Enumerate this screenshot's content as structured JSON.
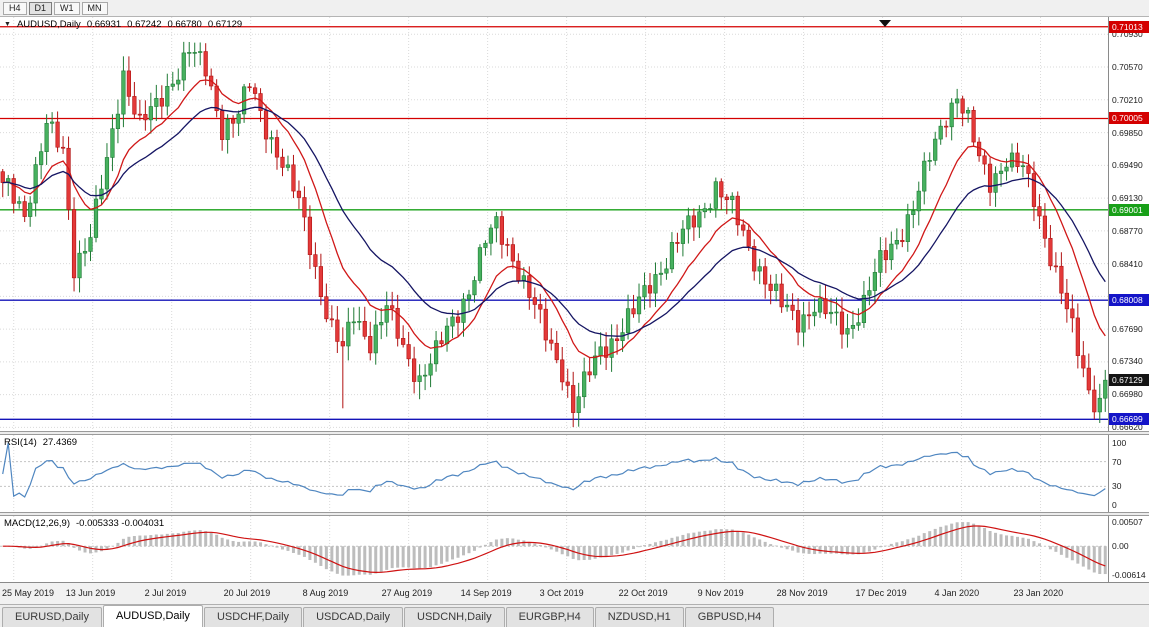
{
  "toolbar": {
    "periods": [
      "H4",
      "D1",
      "W1",
      "MN"
    ],
    "active_period": "D1"
  },
  "chart_header": {
    "symbol": "AUDUSD,Daily",
    "open": "0.66931",
    "high": "0.67242",
    "low": "0.66780",
    "close": "0.67129"
  },
  "price_axis": {
    "ticks": [
      "0.70930",
      "0.70570",
      "0.70210",
      "0.69850",
      "0.69490",
      "0.69130",
      "0.68770",
      "0.68410",
      "0.67690",
      "0.67340",
      "0.66980",
      "0.66620"
    ],
    "badges": [
      {
        "value": "0.71013",
        "price": 0.71013,
        "color": "#d40000"
      },
      {
        "value": "0.70005",
        "price": 0.70005,
        "color": "#d40000"
      },
      {
        "value": "0.69001",
        "price": 0.69001,
        "color": "#18a018"
      },
      {
        "value": "0.68008",
        "price": 0.68008,
        "color": "#1414c8"
      },
      {
        "value": "0.67129",
        "price": 0.67129,
        "color": "#141414"
      },
      {
        "value": "0.66699",
        "price": 0.66699,
        "color": "#1414c8"
      }
    ]
  },
  "hlines": [
    {
      "price": 0.71013,
      "color": "#d40000"
    },
    {
      "price": 0.70005,
      "color": "#d40000"
    },
    {
      "price": 0.69001,
      "color": "#18a018"
    },
    {
      "price": 0.68008,
      "color": "#1414b8"
    },
    {
      "price": 0.66699,
      "color": "#1414b8"
    }
  ],
  "rsi_panel": {
    "name": "RSI(14)",
    "value": "27.4369",
    "ticks": [
      "100",
      "70",
      "30",
      "0"
    ],
    "tick_values": [
      100,
      70,
      30,
      0
    ],
    "levels": [
      70,
      30
    ],
    "line_color": "#4f86c0"
  },
  "macd_panel": {
    "name": "MACD(12,26,9)",
    "values": "-0.005333 -0.004031",
    "ticks": [
      "0.00507",
      "0.00",
      "-0.00614"
    ],
    "tick_values": [
      0.00507,
      0,
      -0.00614
    ],
    "histogram_color": "#bdbdbd",
    "signal_color": "#cf1212"
  },
  "date_axis": [
    "25 May 2019",
    "13 Jun 2019",
    "2 Jul 2019",
    "20 Jul 2019",
    "8 Aug 2019",
    "27 Aug 2019",
    "14 Sep 2019",
    "3 Oct 2019",
    "22 Oct 2019",
    "9 Nov 2019",
    "28 Nov 2019",
    "17 Dec 2019",
    "4 Jan 2020",
    "23 Jan 2020"
  ],
  "tabs": [
    {
      "label": "EURUSD,Daily",
      "active": false
    },
    {
      "label": "AUDUSD,Daily",
      "active": true
    },
    {
      "label": "USDCHF,Daily",
      "active": false
    },
    {
      "label": "USDCAD,Daily",
      "active": false
    },
    {
      "label": "USDCNH,Daily",
      "active": false
    },
    {
      "label": "EURGBP,H4",
      "active": false
    },
    {
      "label": "NZDUSD,H1",
      "active": false
    },
    {
      "label": "GBPUSD,H4",
      "active": false
    }
  ],
  "chart_data": {
    "type": "candlestick",
    "symbol": "AUDUSD",
    "timeframe": "Daily",
    "n_candles": 202,
    "price_range": {
      "top": 0.7112,
      "bottom": 0.6657
    },
    "close_anchors": [
      [
        0,
        0.693
      ],
      [
        4,
        0.6898
      ],
      [
        8,
        0.6992
      ],
      [
        11,
        0.6962
      ],
      [
        13,
        0.684
      ],
      [
        16,
        0.6872
      ],
      [
        19,
        0.695
      ],
      [
        22,
        0.7052
      ],
      [
        25,
        0.6994
      ],
      [
        28,
        0.7012
      ],
      [
        31,
        0.7045
      ],
      [
        34,
        0.7076
      ],
      [
        37,
        0.7052
      ],
      [
        40,
        0.6992
      ],
      [
        43,
        0.7005
      ],
      [
        45,
        0.7036
      ],
      [
        48,
        0.6992
      ],
      [
        51,
        0.6952
      ],
      [
        54,
        0.6906
      ],
      [
        56,
        0.6862
      ],
      [
        58,
        0.6812
      ],
      [
        60,
        0.677
      ],
      [
        62,
        0.6744
      ],
      [
        64,
        0.6784
      ],
      [
        67,
        0.6757
      ],
      [
        70,
        0.6792
      ],
      [
        73,
        0.6747
      ],
      [
        76,
        0.6716
      ],
      [
        79,
        0.6742
      ],
      [
        82,
        0.6777
      ],
      [
        85,
        0.6814
      ],
      [
        88,
        0.6864
      ],
      [
        90,
        0.6882
      ],
      [
        93,
        0.685
      ],
      [
        96,
        0.6806
      ],
      [
        99,
        0.6762
      ],
      [
        102,
        0.6726
      ],
      [
        104,
        0.6682
      ],
      [
        106,
        0.6707
      ],
      [
        109,
        0.6747
      ],
      [
        112,
        0.6763
      ],
      [
        115,
        0.6786
      ],
      [
        118,
        0.682
      ],
      [
        121,
        0.6846
      ],
      [
        124,
        0.6873
      ],
      [
        127,
        0.6896
      ],
      [
        130,
        0.6926
      ],
      [
        133,
        0.69
      ],
      [
        136,
        0.686
      ],
      [
        139,
        0.6824
      ],
      [
        142,
        0.6794
      ],
      [
        145,
        0.6779
      ],
      [
        148,
        0.6796
      ],
      [
        151,
        0.6781
      ],
      [
        154,
        0.6769
      ],
      [
        157,
        0.6799
      ],
      [
        160,
        0.6841
      ],
      [
        163,
        0.6869
      ],
      [
        166,
        0.6903
      ],
      [
        169,
        0.6956
      ],
      [
        172,
        0.7006
      ],
      [
        174,
        0.7028
      ],
      [
        176,
        0.6996
      ],
      [
        178,
        0.6953
      ],
      [
        180,
        0.6931
      ],
      [
        183,
        0.6958
      ],
      [
        186,
        0.6943
      ],
      [
        188,
        0.6911
      ],
      [
        190,
        0.6873
      ],
      [
        192,
        0.6833
      ],
      [
        194,
        0.6789
      ],
      [
        196,
        0.6743
      ],
      [
        198,
        0.6702
      ],
      [
        199,
        0.6678
      ],
      [
        200,
        0.66931
      ],
      [
        201,
        0.67129
      ]
    ],
    "last_candle": {
      "open": 0.66931,
      "high": 0.67242,
      "low": 0.6678,
      "close": 0.67129
    },
    "forced_lows": [
      [
        62,
        0.6682
      ],
      [
        76,
        0.6692
      ],
      [
        104,
        0.667
      ],
      [
        199,
        0.66699
      ]
    ],
    "forced_highs": [
      [
        34,
        0.7082
      ],
      [
        174,
        0.7033
      ]
    ],
    "overlays": [
      {
        "name": "ma-fast",
        "type": "ema",
        "period": 12,
        "color": "#d01818"
      },
      {
        "name": "ma-slow",
        "type": "ema",
        "period": 26,
        "color": "#151563"
      }
    ],
    "indicators": {
      "rsi": {
        "period": 14,
        "last": 27.4369
      },
      "macd": {
        "fast": 12,
        "slow": 26,
        "signal": 9,
        "last_main": -0.005333,
        "last_signal": -0.004031
      }
    },
    "colors": {
      "up": "#47b15f",
      "up_border": "#1f7a35",
      "down": "#e33939",
      "down_border": "#b01212",
      "grid": "#dadada"
    }
  }
}
